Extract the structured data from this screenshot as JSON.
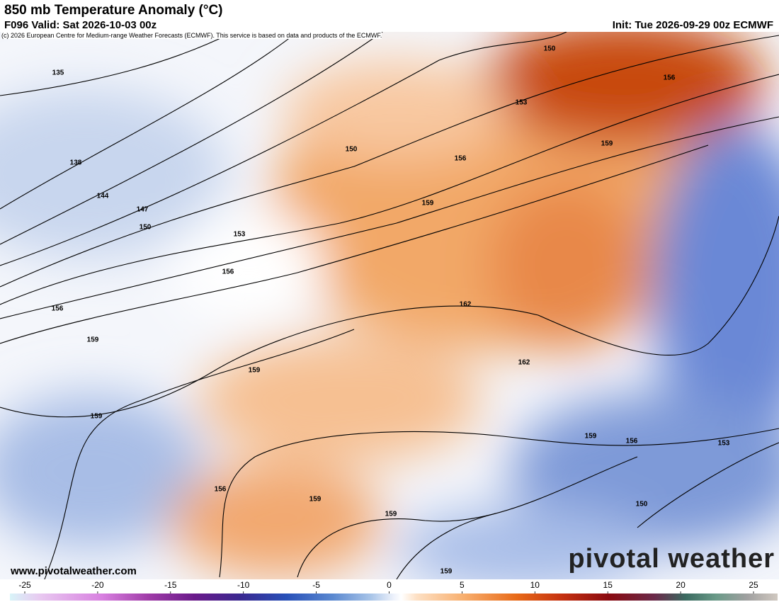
{
  "header": {
    "title": "850 mb Temperature Anomaly (°C)",
    "valid": "F096 Valid: Sat 2026-10-03 00z",
    "init": "Init: Tue 2026-09-29 00z ECMWF",
    "copyright": "(c) 2026 European Centre for Medium-range Weather Forecasts (ECMWF). This service is based on data and products of the ECMWF."
  },
  "map": {
    "contour_labels": [
      135,
      138,
      144,
      147,
      150,
      153,
      156,
      156,
      159,
      159,
      159,
      150,
      156,
      159,
      150,
      153,
      156,
      159,
      162,
      162,
      159,
      156,
      153,
      150,
      156,
      159,
      159,
      159
    ],
    "website": "www.pivotalweather.com",
    "logo": "pivotal weather"
  },
  "colorbar": {
    "ticks": [
      -25,
      -20,
      -15,
      -10,
      -5,
      0,
      5,
      10,
      15,
      20,
      25
    ]
  }
}
